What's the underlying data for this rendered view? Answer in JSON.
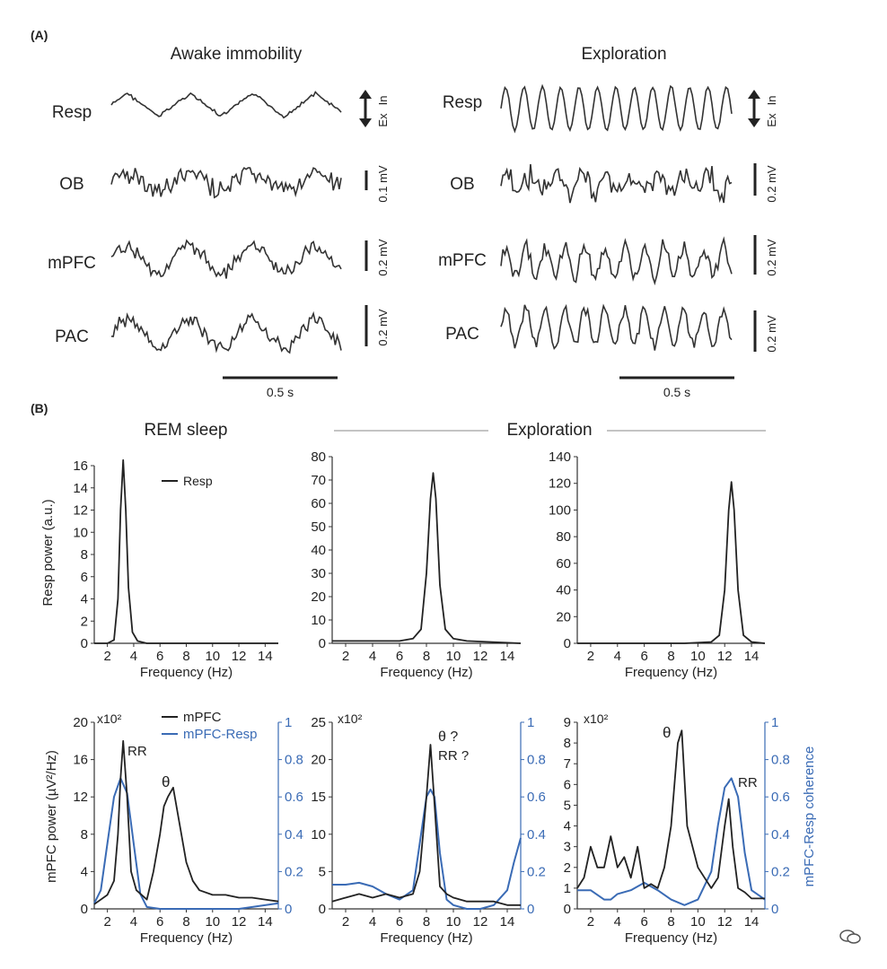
{
  "panel_a": {
    "label": "(A)",
    "left_title": "Awake immobility",
    "right_title": "Exploration",
    "traces": [
      "Resp",
      "OB",
      "mPFC",
      "PAC"
    ],
    "left_scales": [
      "0.1 mV",
      "0.2 mV",
      "0.2 mV"
    ],
    "right_scales": [
      "0.2 mV",
      "0.2 mV",
      "0.2 mV"
    ],
    "resp_in": "In",
    "resp_ex": "Ex",
    "time_bar": "0.5 s"
  },
  "panel_b": {
    "label": "(B)",
    "rem_title": "REM sleep",
    "exploration_title": "Exploration",
    "resp_ylabel": "Resp power (a.u.)",
    "mpfc_ylabel": "mPFC power (µV²/Hz)",
    "coh_ylabel": "mPFC-Resp coherence",
    "xlabel": "Frequency (Hz)",
    "multiplier": "x10²",
    "legend_resp": "Resp",
    "legend_mpfc": "mPFC",
    "legend_coh": "mPFC-Resp",
    "ann": {
      "rr": "RR",
      "theta": "θ",
      "theta_q": "θ ?",
      "rr_q": "RR ?"
    }
  },
  "chart_data": [
    {
      "type": "line",
      "title": "REM sleep",
      "xlabel": "Frequency (Hz)",
      "ylabel": "Resp power (a.u.)",
      "xlim": [
        1,
        15
      ],
      "ylim": [
        0,
        16
      ],
      "series": [
        {
          "name": "Resp",
          "x": [
            1,
            2,
            2.5,
            2.8,
            3.0,
            3.2,
            3.4,
            3.6,
            3.9,
            4.3,
            5,
            8,
            15
          ],
          "y": [
            0,
            0,
            0.3,
            4,
            12,
            16.5,
            12,
            5,
            1,
            0.2,
            0,
            0,
            0
          ]
        }
      ]
    },
    {
      "type": "line",
      "title": "Exploration",
      "xlabel": "Frequency (Hz)",
      "ylim": [
        0,
        80
      ],
      "xlim": [
        1,
        15
      ],
      "series": [
        {
          "x": [
            1,
            2,
            4,
            6,
            7,
            7.6,
            8.0,
            8.3,
            8.5,
            8.7,
            9.0,
            9.4,
            10,
            11,
            15
          ],
          "y": [
            1,
            1,
            1,
            1,
            2,
            6,
            30,
            62,
            73,
            62,
            25,
            6,
            2,
            1,
            0
          ]
        }
      ]
    },
    {
      "type": "line",
      "xlabel": "Frequency (Hz)",
      "ylim": [
        0,
        140
      ],
      "xlim": [
        1,
        15
      ],
      "series": [
        {
          "x": [
            1,
            3,
            6,
            9,
            11,
            11.6,
            12.0,
            12.3,
            12.5,
            12.7,
            13.0,
            13.4,
            14,
            15
          ],
          "y": [
            0,
            0,
            0,
            0,
            1,
            6,
            40,
            100,
            121,
            100,
            40,
            6,
            1,
            0
          ]
        }
      ]
    },
    {
      "type": "line",
      "xlabel": "Frequency (Hz)",
      "ylabel": "mPFC power (µV²/Hz)",
      "y2label": "mPFC-Resp coherence",
      "xlim": [
        1,
        15
      ],
      "ylim": [
        0,
        20
      ],
      "y2lim": [
        0,
        1
      ],
      "series": [
        {
          "name": "mPFC",
          "x": [
            1,
            2,
            2.5,
            2.8,
            3.0,
            3.2,
            3.5,
            3.8,
            4.2,
            5,
            5.5,
            6,
            6.3,
            6.6,
            7,
            7.5,
            8,
            8.5,
            9,
            10,
            11,
            12,
            13,
            14,
            15
          ],
          "y": [
            0.5,
            1.5,
            3,
            8,
            14,
            18,
            12,
            4,
            2,
            1,
            4,
            8,
            11,
            12,
            13,
            9,
            5,
            3,
            2,
            1.5,
            1.5,
            1.2,
            1.2,
            1,
            0.8
          ]
        },
        {
          "name": "mPFC-Resp",
          "x": [
            1,
            1.5,
            2,
            2.5,
            3,
            3.5,
            4,
            4.5,
            5,
            6,
            8,
            10,
            12,
            15
          ],
          "y": [
            0.03,
            0.1,
            0.35,
            0.6,
            0.7,
            0.62,
            0.35,
            0.08,
            0.01,
            0,
            0,
            0,
            0,
            0.03
          ]
        }
      ]
    },
    {
      "type": "line",
      "xlabel": "Frequency (Hz)",
      "xlim": [
        1,
        15
      ],
      "ylim": [
        0,
        25
      ],
      "y2lim": [
        0,
        1
      ],
      "series": [
        {
          "name": "mPFC",
          "x": [
            1,
            2,
            3,
            4,
            5,
            6,
            7,
            7.5,
            8,
            8.3,
            8.6,
            9,
            9.5,
            10,
            11,
            12,
            13,
            14,
            15
          ],
          "y": [
            1,
            1.5,
            2,
            1.5,
            2,
            1.5,
            2,
            5,
            15,
            22,
            14,
            3,
            2,
            1.5,
            1,
            1,
            1,
            0.5,
            0.5
          ]
        },
        {
          "name": "mPFC-Resp",
          "x": [
            1,
            2,
            3,
            4,
            5,
            6,
            7,
            7.5,
            8,
            8.3,
            8.6,
            9,
            9.5,
            10,
            11,
            12,
            13,
            14,
            14.5,
            15
          ],
          "y": [
            0.13,
            0.13,
            0.14,
            0.12,
            0.08,
            0.05,
            0.1,
            0.35,
            0.6,
            0.64,
            0.6,
            0.3,
            0.05,
            0.02,
            0,
            0,
            0.02,
            0.1,
            0.25,
            0.38
          ]
        }
      ]
    },
    {
      "type": "line",
      "xlabel": "Frequency (Hz)",
      "xlim": [
        1,
        15
      ],
      "ylim": [
        0,
        9
      ],
      "y2lim": [
        0,
        1
      ],
      "series": [
        {
          "name": "mPFC",
          "x": [
            1,
            1.5,
            2,
            2.5,
            3,
            3.5,
            4,
            4.5,
            5,
            5.5,
            6,
            6.5,
            7,
            7.5,
            8,
            8.5,
            8.8,
            9.2,
            10,
            10.5,
            11,
            11.5,
            12,
            12.3,
            12.6,
            13,
            13.5,
            14,
            15
          ],
          "y": [
            1,
            1.5,
            3,
            2,
            2,
            3.5,
            2,
            2.5,
            1.5,
            3,
            1,
            1.2,
            1,
            2,
            4,
            8,
            8.6,
            4,
            2,
            1.5,
            1,
            1.5,
            4,
            5.3,
            3,
            1,
            0.8,
            0.5,
            0.5
          ]
        },
        {
          "name": "mPFC-Resp",
          "x": [
            1,
            2,
            3,
            3.5,
            4,
            5,
            5.5,
            6,
            7,
            8,
            9,
            10,
            11,
            11.5,
            12,
            12.5,
            13,
            13.5,
            14,
            15
          ],
          "y": [
            0.1,
            0.1,
            0.05,
            0.05,
            0.08,
            0.1,
            0.12,
            0.14,
            0.1,
            0.05,
            0.02,
            0.05,
            0.2,
            0.45,
            0.65,
            0.7,
            0.6,
            0.3,
            0.1,
            0.05
          ]
        }
      ]
    }
  ]
}
